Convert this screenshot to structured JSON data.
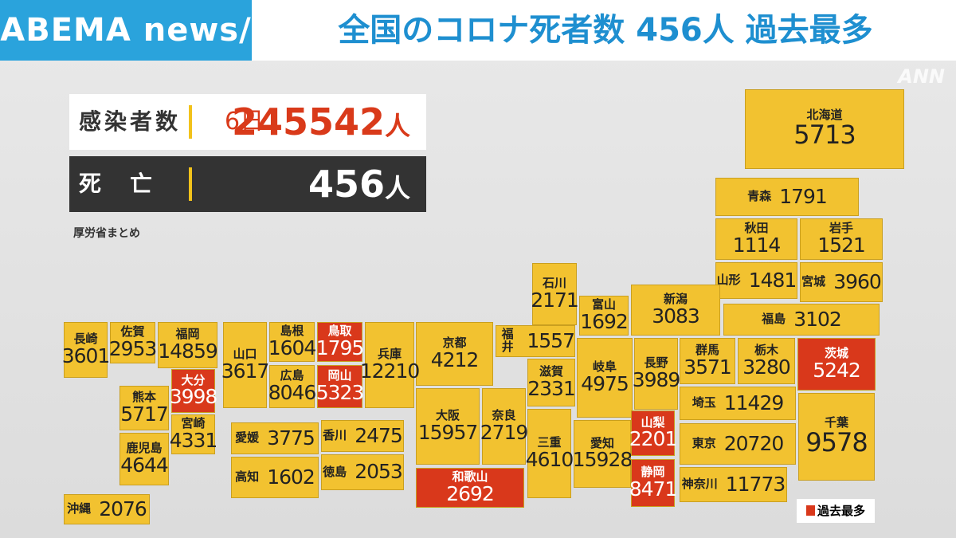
{
  "header": {
    "logo": "ABEMA news/",
    "title": "全国のコロナ死者数 456人 過去最多",
    "watermark": "ANN"
  },
  "summary": {
    "infections": {
      "label": "感染者数",
      "date": "6日",
      "count": 245542,
      "unit": "人"
    },
    "deaths": {
      "label": "死　亡",
      "count": 456,
      "unit": "人"
    },
    "source": "厚労省まとめ"
  },
  "legend": "過去最多",
  "prefectures": [
    {
      "name": "北海道",
      "value": 5713,
      "record": false
    },
    {
      "name": "青森",
      "value": 1791,
      "record": false
    },
    {
      "name": "秋田",
      "value": 1114,
      "record": false
    },
    {
      "name": "岩手",
      "value": 1521,
      "record": false
    },
    {
      "name": "山形",
      "value": 1481,
      "record": false
    },
    {
      "name": "宮城",
      "value": 3960,
      "record": false
    },
    {
      "name": "新潟",
      "value": 3083,
      "record": false
    },
    {
      "name": "福島",
      "value": 3102,
      "record": false
    },
    {
      "name": "富山",
      "value": 1692,
      "record": false
    },
    {
      "name": "石川",
      "value": 2171,
      "record": false
    },
    {
      "name": "福井",
      "value": 1557,
      "record": false
    },
    {
      "name": "京都",
      "value": 4212,
      "record": false
    },
    {
      "name": "兵庫",
      "value": 12210,
      "record": false
    },
    {
      "name": "鳥取",
      "value": 1795,
      "record": true
    },
    {
      "name": "岡山",
      "value": 5323,
      "record": true
    },
    {
      "name": "島根",
      "value": 1604,
      "record": false
    },
    {
      "name": "広島",
      "value": 8046,
      "record": false
    },
    {
      "name": "山口",
      "value": 3617,
      "record": false
    },
    {
      "name": "長崎",
      "value": 3601,
      "record": false
    },
    {
      "name": "佐賀",
      "value": 2953,
      "record": false
    },
    {
      "name": "福岡",
      "value": 14859,
      "record": false
    },
    {
      "name": "大分",
      "value": 3998,
      "record": true
    },
    {
      "name": "熊本",
      "value": 5717,
      "record": false
    },
    {
      "name": "宮崎",
      "value": 4331,
      "record": false
    },
    {
      "name": "鹿児島",
      "value": 4644,
      "record": false
    },
    {
      "name": "沖縄",
      "value": 2076,
      "record": false
    },
    {
      "name": "愛媛",
      "value": 3775,
      "record": false
    },
    {
      "name": "香川",
      "value": 2475,
      "record": false
    },
    {
      "name": "高知",
      "value": 1602,
      "record": false
    },
    {
      "name": "徳島",
      "value": 2053,
      "record": false
    },
    {
      "name": "大阪",
      "value": 15957,
      "record": false
    },
    {
      "name": "奈良",
      "value": 2719,
      "record": false
    },
    {
      "name": "滋賀",
      "value": 2331,
      "record": false
    },
    {
      "name": "三重",
      "value": 4610,
      "record": false
    },
    {
      "name": "和歌山",
      "value": 2692,
      "record": true
    },
    {
      "name": "岐阜",
      "value": 4975,
      "record": false
    },
    {
      "name": "愛知",
      "value": 15928,
      "record": false
    },
    {
      "name": "長野",
      "value": 3989,
      "record": false
    },
    {
      "name": "山梨",
      "value": 2201,
      "record": true
    },
    {
      "name": "静岡",
      "value": 8471,
      "record": true
    },
    {
      "name": "群馬",
      "value": 3571,
      "record": false
    },
    {
      "name": "栃木",
      "value": 3280,
      "record": false
    },
    {
      "name": "茨城",
      "value": 5242,
      "record": true
    },
    {
      "name": "埼玉",
      "value": 11429,
      "record": false
    },
    {
      "name": "千葉",
      "value": 9578,
      "record": false
    },
    {
      "name": "東京",
      "value": 20720,
      "record": false
    },
    {
      "name": "神奈川",
      "value": 11773,
      "record": false
    }
  ]
}
